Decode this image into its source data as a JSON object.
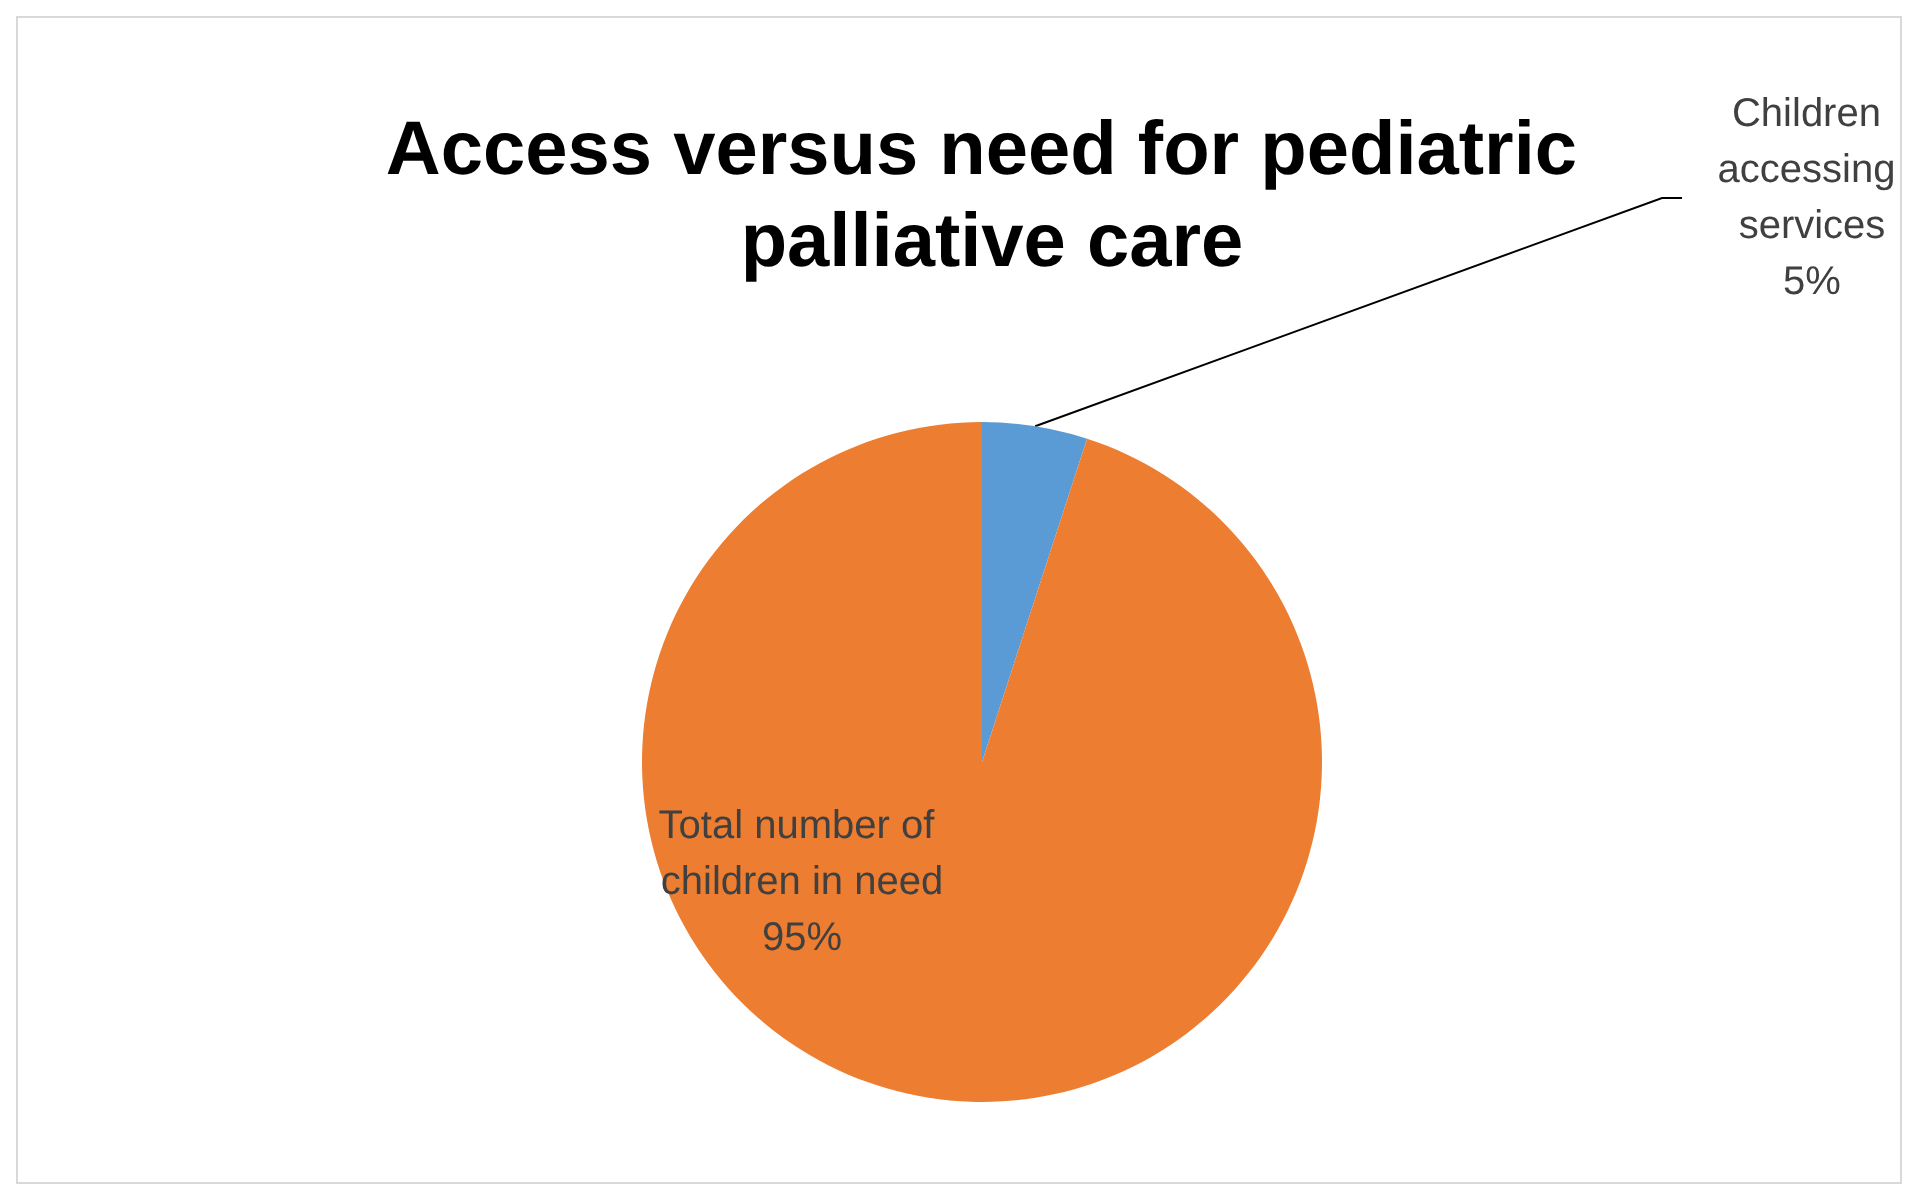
{
  "chart_data": {
    "type": "pie",
    "title": "Access versus need for pediatric palliative care",
    "categories": [
      "Children accessing services",
      "Total number of children in need"
    ],
    "values": [
      5,
      95
    ],
    "colors": [
      "#5b9bd5",
      "#ed7d31"
    ],
    "value_labels": [
      "5%",
      "95%"
    ],
    "legend": false
  }
}
